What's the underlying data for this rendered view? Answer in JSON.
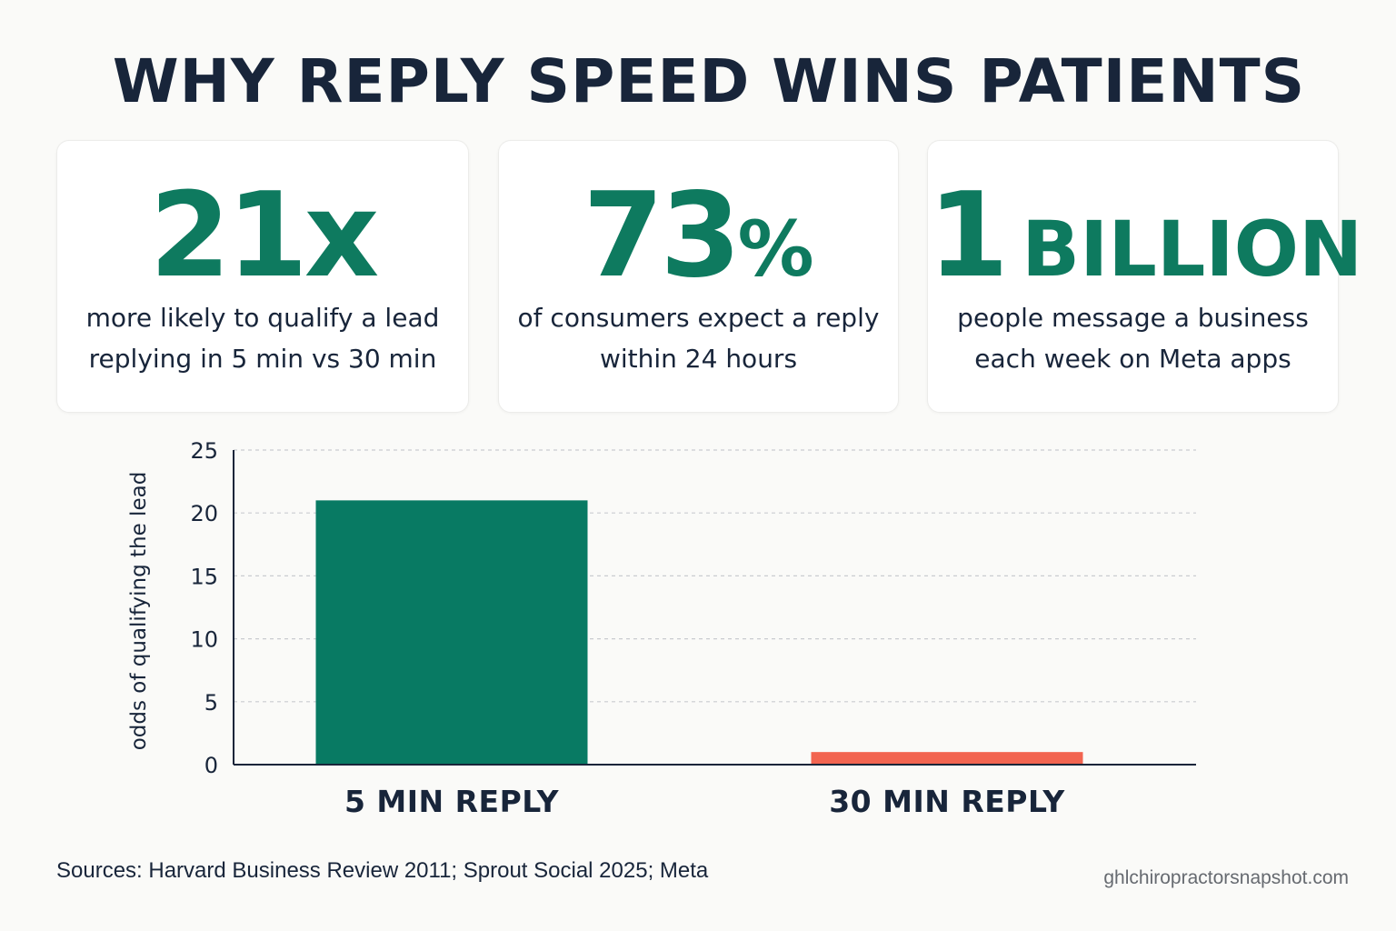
{
  "page": {
    "title": "WHY REPLY SPEED WINS PATIENTS",
    "source": "Sources: Harvard Business Review 2011; Sprout Social 2025; Meta",
    "credit": "ghlchiropractorsnapshot.com"
  },
  "stats": [
    {
      "value": "21x",
      "value_suffix": "",
      "desc_line1": "more likely to qualify a lead",
      "desc_line2": "replying in 5 min vs 30 min"
    },
    {
      "value": "73",
      "value_suffix": "%",
      "desc_line1": "of consumers expect a reply",
      "desc_line2": "within 24 hours"
    },
    {
      "value": "1",
      "value_suffix": "BILLION",
      "desc_line1": "people message a business",
      "desc_line2": "each week on Meta apps"
    }
  ],
  "colors": {
    "accent": "#0e7a5f",
    "bar_5min": "#087a63",
    "bar_30min": "#f26450",
    "text_dark": "#18253a",
    "muted": "#666a70"
  },
  "chart_data": {
    "type": "bar",
    "categories": [
      "5 MIN REPLY",
      "30 MIN REPLY"
    ],
    "values": [
      21,
      1
    ],
    "bar_colors": [
      "#087a63",
      "#f26450"
    ],
    "ylabel": "odds of qualifying the lead",
    "xlabel": "",
    "ylim": [
      0,
      25
    ],
    "yticks": [
      0,
      5,
      10,
      15,
      20,
      25
    ],
    "grid": true
  }
}
